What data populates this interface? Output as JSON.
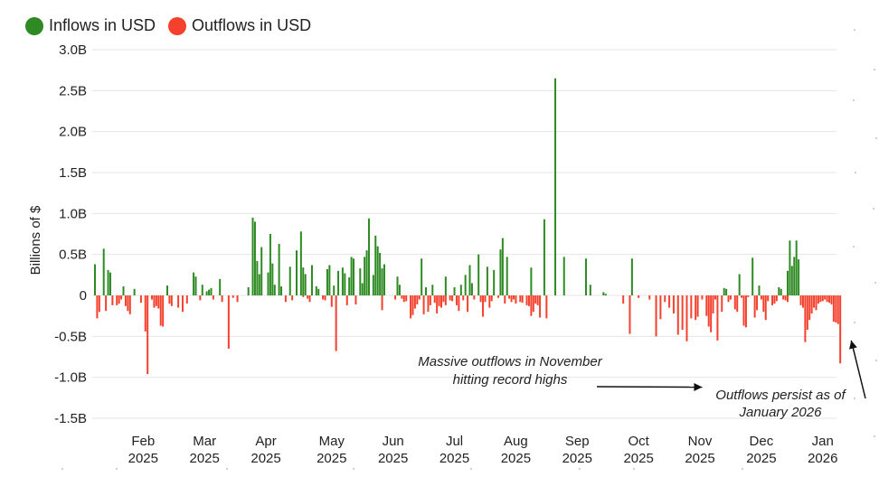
{
  "legend": {
    "items": [
      {
        "label": "Inflows in USD",
        "color": "#2e8a22"
      },
      {
        "label": "Outflows in USD",
        "color": "#f4412e"
      }
    ]
  },
  "chart_data": {
    "type": "bar",
    "ylabel": "Billions of $",
    "ylim": [
      -1.5,
      3.0
    ],
    "yticks": [
      {
        "value": 3.0,
        "label": "3.0B"
      },
      {
        "value": 2.5,
        "label": "2.5B"
      },
      {
        "value": 2.0,
        "label": "2.0B"
      },
      {
        "value": 1.5,
        "label": "1.5B"
      },
      {
        "value": 1.0,
        "label": "1.0B"
      },
      {
        "value": 0.5,
        "label": "0.5B"
      },
      {
        "value": 0,
        "label": "0"
      },
      {
        "value": -0.5,
        "label": "-0.5B"
      },
      {
        "value": -1.0,
        "label": "-1.0B"
      },
      {
        "value": -1.5,
        "label": "-1.5B"
      }
    ],
    "xticks": [
      {
        "day": 22,
        "month": "Feb",
        "year": "2025"
      },
      {
        "day": 50,
        "month": "Mar",
        "year": "2025"
      },
      {
        "day": 78,
        "month": "Apr",
        "year": "2025"
      },
      {
        "day": 108,
        "month": "May",
        "year": "2025"
      },
      {
        "day": 136,
        "month": "Jun",
        "year": "2025"
      },
      {
        "day": 164,
        "month": "Jul",
        "year": "2025"
      },
      {
        "day": 192,
        "month": "Aug",
        "year": "2025"
      },
      {
        "day": 220,
        "month": "Sep",
        "year": "2025"
      },
      {
        "day": 248,
        "month": "Oct",
        "year": "2025"
      },
      {
        "day": 276,
        "month": "Nov",
        "year": "2025"
      },
      {
        "day": 304,
        "month": "Dec",
        "year": "2025"
      },
      {
        "day": 332,
        "month": "Jan",
        "year": "2026"
      }
    ],
    "series": [
      {
        "name": "Inflows in USD",
        "color": "#2e8a22",
        "points": [
          [
            0,
            0.38
          ],
          [
            4,
            0.57
          ],
          [
            6,
            0.31
          ],
          [
            7,
            0.28
          ],
          [
            13,
            0.11
          ],
          [
            18,
            0.08
          ],
          [
            33,
            0.12
          ],
          [
            45,
            0.28
          ],
          [
            46,
            0.23
          ],
          [
            49,
            0.13
          ],
          [
            51,
            0.05
          ],
          [
            52,
            0.07
          ],
          [
            53,
            0.09
          ],
          [
            57,
            0.2
          ],
          [
            70,
            0.1
          ],
          [
            72,
            0.95
          ],
          [
            73,
            0.9
          ],
          [
            74,
            0.42
          ],
          [
            75,
            0.26
          ],
          [
            76,
            0.59
          ],
          [
            79,
            0.28
          ],
          [
            80,
            0.75
          ],
          [
            81,
            0.39
          ],
          [
            82,
            0.13
          ],
          [
            84,
            0.63
          ],
          [
            85,
            0.11
          ],
          [
            89,
            0.35
          ],
          [
            92,
            0.55
          ],
          [
            94,
            0.78
          ],
          [
            95,
            0.34
          ],
          [
            96,
            0.26
          ],
          [
            99,
            0.37
          ],
          [
            101,
            0.11
          ],
          [
            102,
            0.08
          ],
          [
            106,
            0.32
          ],
          [
            107,
            0.37
          ],
          [
            109,
            0.12
          ],
          [
            111,
            0.3
          ],
          [
            113,
            0.34
          ],
          [
            114,
            0.27
          ],
          [
            116,
            0.22
          ],
          [
            117,
            0.47
          ],
          [
            118,
            0.45
          ],
          [
            121,
            0.33
          ],
          [
            122,
            0.15
          ],
          [
            123,
            0.47
          ],
          [
            124,
            0.55
          ],
          [
            125,
            0.94
          ],
          [
            127,
            0.25
          ],
          [
            128,
            0.73
          ],
          [
            129,
            0.6
          ],
          [
            130,
            0.52
          ],
          [
            131,
            0.33
          ],
          [
            132,
            0.38
          ],
          [
            138,
            0.23
          ],
          [
            139,
            0.13
          ],
          [
            149,
            0.45
          ],
          [
            151,
            0.1
          ],
          [
            154,
            0.13
          ],
          [
            160,
            0.23
          ],
          [
            164,
            0.1
          ],
          [
            167,
            0.13
          ],
          [
            169,
            0.25
          ],
          [
            171,
            0.37
          ],
          [
            172,
            0.15
          ],
          [
            175,
            0.5
          ],
          [
            179,
            0.35
          ],
          [
            182,
            0.31
          ],
          [
            185,
            0.56
          ],
          [
            186,
            0.7
          ],
          [
            188,
            0.47
          ],
          [
            199,
            0.34
          ],
          [
            205,
            0.93
          ],
          [
            210,
            2.65
          ],
          [
            214,
            0.47
          ],
          [
            224,
            0.45
          ],
          [
            226,
            0.13
          ],
          [
            232,
            0.04
          ],
          [
            233,
            0.02
          ],
          [
            245,
            0.45
          ],
          [
            287,
            0.09
          ],
          [
            288,
            0.08
          ],
          [
            294,
            0.26
          ],
          [
            300,
            0.46
          ],
          [
            303,
            0.12
          ],
          [
            312,
            0.1
          ],
          [
            313,
            0.08
          ],
          [
            316,
            0.3
          ],
          [
            317,
            0.67
          ],
          [
            318,
            0.36
          ],
          [
            319,
            0.47
          ],
          [
            320,
            0.67
          ],
          [
            321,
            0.44
          ]
        ]
      },
      {
        "name": "Outflows in USD",
        "color": "#f4412e",
        "points": [
          [
            1,
            -0.28
          ],
          [
            2,
            -0.2
          ],
          [
            5,
            -0.19
          ],
          [
            8,
            -0.12
          ],
          [
            10,
            -0.12
          ],
          [
            11,
            -0.1
          ],
          [
            12,
            -0.05
          ],
          [
            14,
            -0.13
          ],
          [
            15,
            -0.19
          ],
          [
            16,
            -0.23
          ],
          [
            21,
            -0.09
          ],
          [
            23,
            -0.44
          ],
          [
            24,
            -0.96
          ],
          [
            26,
            -0.05
          ],
          [
            27,
            -0.15
          ],
          [
            28,
            -0.13
          ],
          [
            29,
            -0.16
          ],
          [
            30,
            -0.37
          ],
          [
            31,
            -0.38
          ],
          [
            34,
            -0.1
          ],
          [
            35,
            -0.13
          ],
          [
            38,
            -0.15
          ],
          [
            40,
            -0.2
          ],
          [
            42,
            -0.1
          ],
          [
            48,
            -0.06
          ],
          [
            54,
            -0.05
          ],
          [
            58,
            -0.08
          ],
          [
            61,
            -0.65
          ],
          [
            63,
            -0.03
          ],
          [
            65,
            -0.08
          ],
          [
            87,
            -0.08
          ],
          [
            90,
            -0.06
          ],
          [
            95,
            -0.02
          ],
          [
            97,
            -0.04
          ],
          [
            98,
            -0.08
          ],
          [
            104,
            -0.05
          ],
          [
            105,
            -0.06
          ],
          [
            108,
            -0.14
          ],
          [
            110,
            -0.68
          ],
          [
            115,
            -0.12
          ],
          [
            119,
            -0.11
          ],
          [
            131,
            -0.18
          ],
          [
            137,
            -0.05
          ],
          [
            140,
            -0.04
          ],
          [
            141,
            -0.08
          ],
          [
            142,
            -0.07
          ],
          [
            144,
            -0.28
          ],
          [
            145,
            -0.24
          ],
          [
            146,
            -0.16
          ],
          [
            147,
            -0.11
          ],
          [
            148,
            -0.05
          ],
          [
            150,
            -0.23
          ],
          [
            152,
            -0.2
          ],
          [
            153,
            -0.12
          ],
          [
            155,
            -0.09
          ],
          [
            156,
            -0.22
          ],
          [
            157,
            -0.13
          ],
          [
            158,
            -0.15
          ],
          [
            159,
            -0.08
          ],
          [
            160,
            -0.12
          ],
          [
            162,
            -0.06
          ],
          [
            163,
            -0.07
          ],
          [
            165,
            -0.12
          ],
          [
            166,
            -0.19
          ],
          [
            168,
            -0.06
          ],
          [
            170,
            -0.2
          ],
          [
            173,
            -0.05
          ],
          [
            176,
            -0.08
          ],
          [
            177,
            -0.26
          ],
          [
            178,
            -0.08
          ],
          [
            180,
            -0.15
          ],
          [
            181,
            -0.07
          ],
          [
            184,
            -0.03
          ],
          [
            187,
            -0.1
          ],
          [
            189,
            -0.04
          ],
          [
            190,
            -0.08
          ],
          [
            191,
            -0.05
          ],
          [
            192,
            -0.1
          ],
          [
            194,
            -0.08
          ],
          [
            195,
            -0.09
          ],
          [
            197,
            -0.12
          ],
          [
            198,
            -0.13
          ],
          [
            199,
            -0.25
          ],
          [
            200,
            -0.2
          ],
          [
            201,
            -0.1
          ],
          [
            202,
            -0.12
          ],
          [
            203,
            -0.27
          ],
          [
            206,
            -0.28
          ],
          [
            241,
            -0.1
          ],
          [
            244,
            -0.47
          ],
          [
            248,
            -0.03
          ],
          [
            253,
            -0.05
          ],
          [
            256,
            -0.5
          ],
          [
            258,
            -0.29
          ],
          [
            260,
            -0.08
          ],
          [
            262,
            -0.15
          ],
          [
            264,
            -0.22
          ],
          [
            266,
            -0.48
          ],
          [
            268,
            -0.42
          ],
          [
            270,
            -0.56
          ],
          [
            272,
            -0.28
          ],
          [
            274,
            -0.3
          ],
          [
            275,
            -0.26
          ],
          [
            277,
            -0.05
          ],
          [
            279,
            -0.25
          ],
          [
            280,
            -0.38
          ],
          [
            281,
            -0.45
          ],
          [
            282,
            -0.22
          ],
          [
            283,
            -0.05
          ],
          [
            284,
            -0.55
          ],
          [
            286,
            -0.2
          ],
          [
            289,
            -0.08
          ],
          [
            290,
            -0.05
          ],
          [
            292,
            -0.17
          ],
          [
            293,
            -0.2
          ],
          [
            295,
            -0.03
          ],
          [
            296,
            -0.37
          ],
          [
            297,
            -0.39
          ],
          [
            298,
            -0.02
          ],
          [
            301,
            -0.27
          ],
          [
            302,
            -0.18
          ],
          [
            304,
            -0.05
          ],
          [
            305,
            -0.2
          ],
          [
            306,
            -0.3
          ],
          [
            307,
            -0.07
          ],
          [
            309,
            -0.12
          ],
          [
            310,
            -0.1
          ],
          [
            311,
            -0.07
          ],
          [
            314,
            -0.05
          ],
          [
            315,
            -0.06
          ],
          [
            316,
            -0.08
          ],
          [
            322,
            -0.12
          ],
          [
            323,
            -0.15
          ],
          [
            324,
            -0.57
          ],
          [
            325,
            -0.42
          ],
          [
            326,
            -0.3
          ],
          [
            327,
            -0.22
          ],
          [
            328,
            -0.15
          ],
          [
            329,
            -0.18
          ],
          [
            330,
            -0.1
          ],
          [
            331,
            -0.08
          ],
          [
            332,
            -0.07
          ],
          [
            333,
            -0.05
          ],
          [
            334,
            -0.08
          ],
          [
            335,
            -0.09
          ],
          [
            336,
            -0.11
          ],
          [
            337,
            -0.32
          ],
          [
            338,
            -0.33
          ],
          [
            339,
            -0.35
          ],
          [
            340,
            -0.83
          ]
        ]
      }
    ],
    "annotations": [
      {
        "id": "nov",
        "lines": [
          "Massive outflows in November",
          "hitting record highs"
        ],
        "arrow_to": [
          277,
          -1.12
        ]
      },
      {
        "id": "jan",
        "lines": [
          "Outflows persist as of",
          "January 2026"
        ],
        "arrow_to": [
          345,
          -0.55
        ]
      }
    ]
  }
}
